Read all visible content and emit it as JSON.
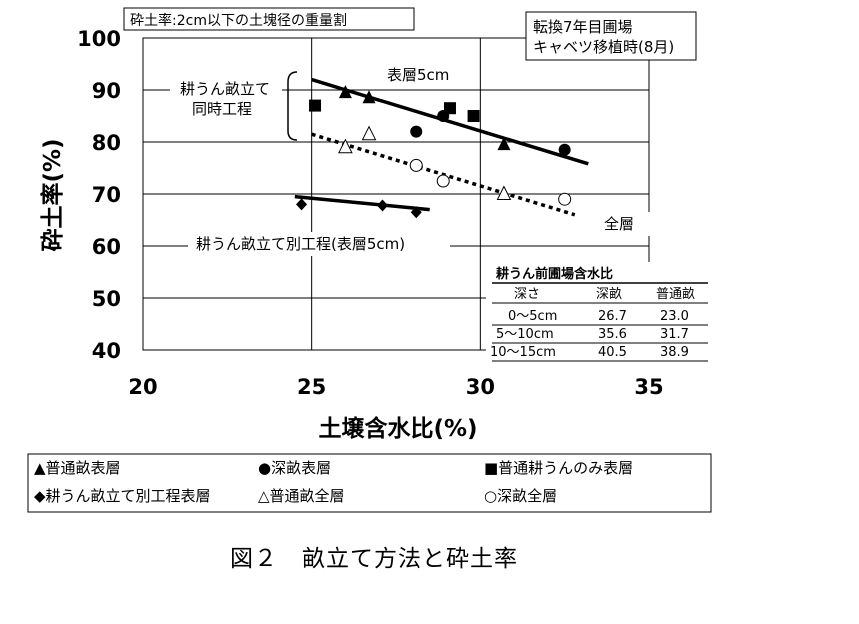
{
  "note_box": "砕土率:2cm以下の土塊径の重量割",
  "field_box": {
    "line1": "転換7年目圃場",
    "line2": "キャベツ移植時(8月)"
  },
  "bracket_label": {
    "line1": "耕うん畝立て",
    "line2": "同時工程"
  },
  "caption": "図２　畝立て方法と砕土率",
  "chart_data": {
    "type": "scatter",
    "xlabel": "土壌含水比(%)",
    "ylabel": "砕土率(%)",
    "xlim": [
      20,
      35
    ],
    "ylim": [
      40,
      100
    ],
    "x_ticks": [
      "20",
      "25",
      "30",
      "35"
    ],
    "y_ticks": [
      "40",
      "50",
      "60",
      "70",
      "80",
      "90",
      "100"
    ],
    "grid": true,
    "series": [
      {
        "name": "普通畝表層",
        "marker": "triangle-filled",
        "points": [
          [
            26.0,
            89.5
          ],
          [
            26.7,
            88.5
          ],
          [
            30.7,
            79.5
          ]
        ]
      },
      {
        "name": "深畝表層",
        "marker": "circle-filled",
        "points": [
          [
            28.1,
            82.0
          ],
          [
            28.9,
            85.0
          ],
          [
            32.5,
            78.5
          ]
        ]
      },
      {
        "name": "普通耕うんのみ表層",
        "marker": "square-filled",
        "points": [
          [
            25.1,
            87.0
          ],
          [
            29.1,
            86.5
          ],
          [
            29.8,
            85.0
          ]
        ]
      },
      {
        "name": "耕うん畝立て別工程表層",
        "marker": "diamond-filled",
        "points": [
          [
            24.7,
            68.0
          ],
          [
            27.1,
            67.8
          ],
          [
            28.1,
            66.5
          ]
        ]
      },
      {
        "name": "普通畝全層",
        "marker": "triangle-open",
        "points": [
          [
            26.0,
            79.0
          ],
          [
            26.7,
            81.5
          ],
          [
            30.7,
            70.0
          ]
        ]
      },
      {
        "name": "深畝全層",
        "marker": "circle-open",
        "points": [
          [
            28.1,
            75.5
          ],
          [
            28.9,
            72.5
          ],
          [
            32.5,
            69.0
          ]
        ]
      }
    ],
    "trend_lines": [
      {
        "label": "表層5cm",
        "style": "solid",
        "from": [
          25.0,
          92.0
        ],
        "to": [
          33.2,
          75.8
        ]
      },
      {
        "label": "全層",
        "style": "dotted",
        "from": [
          25.0,
          81.5
        ],
        "to": [
          32.8,
          66.0
        ]
      },
      {
        "label": "耕うん畝立て別工程(表層5cm)",
        "style": "solid",
        "from": [
          24.5,
          69.5
        ],
        "to": [
          28.5,
          67.0
        ]
      }
    ],
    "legend_position": "bottom",
    "legend": [
      [
        "▲普通畝表層",
        "●深畝表層",
        "■普通耕うんのみ表層"
      ],
      [
        "◆耕うん畝立て別工程表層",
        "△普通畝全層",
        "○深畝全層"
      ]
    ]
  },
  "moisture_table": {
    "title": "耕うん前圃場含水比",
    "headers": [
      "深さ",
      "深畝",
      "普通畝"
    ],
    "rows": [
      [
        "0～5cm",
        "26.7",
        "23.0"
      ],
      [
        "5～10cm",
        "35.6",
        "31.7"
      ],
      [
        "10～15cm",
        "40.5",
        "38.9"
      ]
    ]
  }
}
